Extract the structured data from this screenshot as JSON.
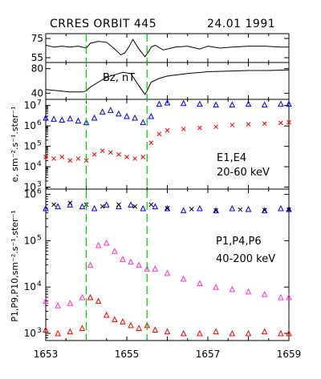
{
  "header": {
    "title": "CRRES ORBIT 445",
    "date": "24.01 1991"
  },
  "chart_data": {
    "type": "scatter",
    "x_range": [
      1653,
      1659
    ],
    "x_ticks": [
      "1653",
      "1655",
      "1657",
      "1659"
    ],
    "event_markers_x": [
      1654.0,
      1655.5
    ],
    "event_marker_color": "#00cc00",
    "panels": [
      {
        "id": "panel-1",
        "type": "line",
        "ylim": [
          50,
          80
        ],
        "yticks": [
          75,
          55
        ],
        "ylabel": "",
        "annotation": "",
        "series": [
          {
            "color": "#000000",
            "x": [
              1653.0,
              1653.2,
              1653.4,
              1653.6,
              1653.8,
              1654.0,
              1654.1,
              1654.3,
              1654.5,
              1654.7,
              1654.85,
              1654.95,
              1655.05,
              1655.15,
              1655.3,
              1655.45,
              1655.55,
              1655.6,
              1655.7,
              1655.9,
              1656.2,
              1656.5,
              1656.8,
              1657.0,
              1657.3,
              1657.6,
              1658.0,
              1658.4,
              1658.8,
              1659.0
            ],
            "y": [
              68,
              66,
              67,
              66,
              67,
              65,
              70,
              72,
              71,
              64,
              58,
              60,
              66,
              74,
              64,
              56,
              62,
              66,
              68,
              63,
              66,
              67,
              64,
              67,
              65,
              66,
              67,
              67,
              66,
              66
            ]
          }
        ]
      },
      {
        "id": "panel-2",
        "type": "line",
        "ylim": [
          30,
          90
        ],
        "yticks": [
          80,
          40
        ],
        "ylabel": "",
        "annotation": "Bz,  nT",
        "series": [
          {
            "color": "#000000",
            "x": [
              1653.0,
              1653.3,
              1653.6,
              1653.9,
              1654.0,
              1654.1,
              1654.3,
              1654.5,
              1654.7,
              1654.9,
              1655.1,
              1655.3,
              1655.45,
              1655.5,
              1655.6,
              1655.8,
              1656.0,
              1656.5,
              1657.0,
              1657.5,
              1658.0,
              1658.5,
              1659.0
            ],
            "y": [
              46,
              44,
              42,
              42,
              44,
              50,
              58,
              66,
              70,
              74,
              72,
              52,
              38,
              44,
              58,
              64,
              68,
              72,
              75,
              76,
              77,
              77,
              78
            ]
          }
        ]
      },
      {
        "id": "panel-3",
        "type": "scatter",
        "yscale": "log",
        "ylim": [
          800,
          20000000
        ],
        "yticks": [
          "10^3",
          "10^4",
          "10^5",
          "10^6",
          "10^7"
        ],
        "ylabel": "e, sm⁻².s⁻¹.ster⁻¹",
        "annotation": [
          "E1,E4",
          "20-60 keV"
        ],
        "series": [
          {
            "name": "E1",
            "color": "#0000ff",
            "marker": "triangle",
            "x": [
              1653.0,
              1653.2,
              1653.4,
              1653.6,
              1653.8,
              1654.0,
              1654.2,
              1654.4,
              1654.6,
              1654.8,
              1655.0,
              1655.2,
              1655.4,
              1655.6,
              1655.8,
              1656.0,
              1656.4,
              1656.8,
              1657.2,
              1657.6,
              1658.0,
              1658.4,
              1658.8,
              1659.0
            ],
            "y": [
              2500000,
              2200000,
              2000000,
              2300000,
              1800000,
              1500000,
              2500000,
              5000000,
              6000000,
              4000000,
              3000000,
              2500000,
              1500000,
              3000000,
              12000000,
              14000000,
              13000000,
              12000000,
              11000000,
              11000000,
              12000000,
              11000000,
              12000000,
              12000000
            ]
          },
          {
            "name": "E4",
            "color": "#ff0000",
            "marker": "cross",
            "x": [
              1653.0,
              1653.2,
              1653.4,
              1653.6,
              1653.8,
              1654.0,
              1654.2,
              1654.4,
              1654.6,
              1654.8,
              1655.0,
              1655.2,
              1655.4,
              1655.6,
              1655.8,
              1656.0,
              1656.4,
              1656.8,
              1657.2,
              1657.6,
              1658.0,
              1658.4,
              1658.8,
              1659.0
            ],
            "y": [
              30000,
              25000,
              30000,
              20000,
              25000,
              20000,
              40000,
              60000,
              50000,
              40000,
              30000,
              25000,
              30000,
              150000,
              400000,
              600000,
              700000,
              800000,
              900000,
              1100000,
              1200000,
              1300000,
              1400000,
              1500000
            ]
          }
        ]
      },
      {
        "id": "panel-4",
        "type": "scatter",
        "yscale": "log",
        "ylim": [
          700,
          1300000
        ],
        "yticks": [
          "10^3",
          "10^4",
          "10^5",
          "10^6"
        ],
        "ylabel": "P1,P9,P10,sm⁻².s⁻¹.ster⁻¹",
        "annotation": [
          "P1,P4,P6",
          "40-200 keV"
        ],
        "series": [
          {
            "name": "P1",
            "color": "#0000ff",
            "marker": "triangle",
            "x": [
              1653.0,
              1653.3,
              1653.6,
              1653.9,
              1654.2,
              1654.5,
              1654.8,
              1655.1,
              1655.4,
              1655.7,
              1656.0,
              1656.4,
              1656.8,
              1657.2,
              1657.6,
              1658.0,
              1658.4,
              1658.8,
              1659.0
            ],
            "y": [
              500000,
              550000,
              600000,
              550000,
              500000,
              600000,
              550000,
              600000,
              500000,
              550000,
              500000,
              450000,
              500000,
              450000,
              500000,
              480000,
              450000,
              500000,
              480000
            ]
          },
          {
            "name": "P4",
            "color": "#ff33cc",
            "marker": "triangle",
            "x": [
              1653.0,
              1653.3,
              1653.6,
              1653.9,
              1654.1,
              1654.3,
              1654.5,
              1654.7,
              1654.9,
              1655.1,
              1655.3,
              1655.5,
              1655.7,
              1656.0,
              1656.4,
              1656.8,
              1657.2,
              1657.6,
              1658.0,
              1658.4,
              1658.8,
              1659.0
            ],
            "y": [
              5000,
              4000,
              4500,
              6000,
              30000,
              80000,
              90000,
              60000,
              40000,
              35000,
              30000,
              25000,
              25000,
              20000,
              15000,
              12000,
              10000,
              9000,
              8000,
              7000,
              6000,
              6000
            ]
          },
          {
            "name": "P6",
            "color": "#ff0000",
            "marker": "triangle",
            "x": [
              1653.0,
              1653.3,
              1653.6,
              1653.9,
              1654.1,
              1654.3,
              1654.5,
              1654.7,
              1654.9,
              1655.1,
              1655.3,
              1655.5,
              1655.7,
              1656.0,
              1656.4,
              1656.8,
              1657.2,
              1657.6,
              1658.0,
              1658.4,
              1658.8,
              1659.0
            ],
            "y": [
              1200,
              1000,
              1100,
              1300,
              6000,
              5000,
              2500,
              2000,
              1800,
              1500,
              1300,
              1500,
              1200,
              1100,
              1000,
              1000,
              1100,
              1000,
              1000,
              1100,
              1000,
              1000
            ]
          },
          {
            "name": "P9",
            "color": "#000000",
            "marker": "cross",
            "x": [
              1653.2,
              1653.6,
              1654.0,
              1654.4,
              1654.8,
              1655.2,
              1655.6,
              1656.0,
              1656.6,
              1657.2,
              1657.8,
              1658.4,
              1659.0
            ],
            "y": [
              600000,
              650000,
              600000,
              550000,
              600000,
              550000,
              600000,
              500000,
              480000,
              450000,
              470000,
              460000,
              470000
            ]
          }
        ]
      }
    ]
  }
}
